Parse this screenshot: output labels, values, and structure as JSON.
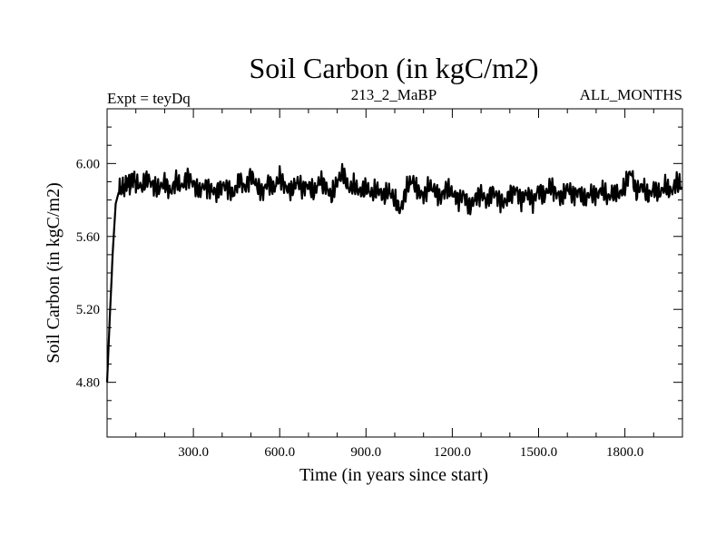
{
  "chart_data": {
    "type": "line",
    "title": "Soil Carbon (in kgC/m2)",
    "subtitle_left": "Expt = teyDq",
    "subtitle_center": "213_2_MaBP",
    "subtitle_right": "ALL_MONTHS",
    "xlabel": "Time (in years since start)",
    "ylabel": "Soil Carbon (in kgC/m2)",
    "xlim": [
      0,
      2000
    ],
    "ylim": [
      4.5,
      6.3
    ],
    "xticks": [
      300,
      600,
      900,
      1200,
      1500,
      1800
    ],
    "xtick_labels": [
      "300.0",
      "600.0",
      "900.0",
      "1200.0",
      "1500.0",
      "1800.0"
    ],
    "yticks": [
      4.8,
      5.2,
      5.6,
      6.0
    ],
    "ytick_labels": [
      "4.80",
      "5.20",
      "5.60",
      "6.00"
    ],
    "x_minor_step": 100,
    "y_minor_step": 0.1,
    "grid": false,
    "series": [
      {
        "color": "#000000",
        "x": [
          0,
          10,
          20,
          30,
          40,
          50,
          60,
          70,
          80,
          90,
          100,
          120,
          140,
          160,
          180,
          200,
          220,
          240,
          260,
          280,
          300,
          320,
          340,
          360,
          380,
          400,
          420,
          440,
          460,
          480,
          500,
          520,
          540,
          560,
          580,
          600,
          620,
          640,
          660,
          680,
          700,
          720,
          740,
          760,
          780,
          800,
          820,
          840,
          860,
          880,
          900,
          920,
          940,
          960,
          980,
          1000,
          1020,
          1040,
          1060,
          1080,
          1100,
          1120,
          1140,
          1160,
          1180,
          1200,
          1220,
          1240,
          1260,
          1280,
          1300,
          1320,
          1340,
          1360,
          1380,
          1400,
          1420,
          1440,
          1460,
          1480,
          1500,
          1520,
          1540,
          1560,
          1580,
          1600,
          1620,
          1640,
          1660,
          1680,
          1700,
          1720,
          1740,
          1760,
          1780,
          1800,
          1820,
          1840,
          1860,
          1880,
          1900,
          1920,
          1940,
          1960,
          1980,
          2000
        ],
        "y": [
          4.8,
          5.18,
          5.52,
          5.78,
          5.84,
          5.87,
          5.86,
          5.9,
          5.88,
          5.92,
          5.89,
          5.87,
          5.92,
          5.88,
          5.86,
          5.9,
          5.84,
          5.91,
          5.87,
          5.93,
          5.89,
          5.85,
          5.88,
          5.86,
          5.84,
          5.88,
          5.87,
          5.83,
          5.92,
          5.86,
          5.94,
          5.88,
          5.84,
          5.9,
          5.86,
          5.93,
          5.87,
          5.85,
          5.9,
          5.86,
          5.88,
          5.84,
          5.91,
          5.87,
          5.82,
          5.9,
          5.95,
          5.86,
          5.88,
          5.84,
          5.87,
          5.83,
          5.86,
          5.82,
          5.85,
          5.8,
          5.74,
          5.86,
          5.91,
          5.85,
          5.82,
          5.88,
          5.85,
          5.81,
          5.87,
          5.84,
          5.8,
          5.83,
          5.76,
          5.81,
          5.84,
          5.79,
          5.85,
          5.81,
          5.78,
          5.83,
          5.86,
          5.8,
          5.84,
          5.79,
          5.86,
          5.82,
          5.88,
          5.84,
          5.81,
          5.87,
          5.82,
          5.85,
          5.8,
          5.84,
          5.82,
          5.86,
          5.81,
          5.84,
          5.83,
          5.87,
          5.96,
          5.84,
          5.88,
          5.82,
          5.86,
          5.83,
          5.88,
          5.84,
          5.9,
          5.87
        ]
      }
    ]
  }
}
